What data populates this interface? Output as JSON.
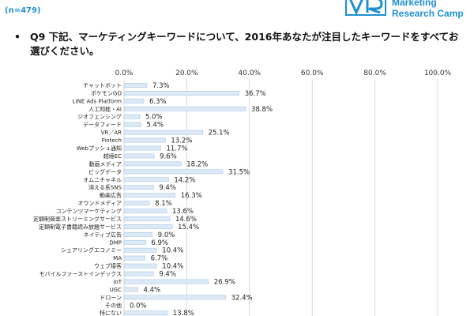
{
  "header": {
    "n_label": "(n=479)",
    "logo_line1": "Marketing",
    "logo_line2": "Research Camp"
  },
  "question": {
    "bullet": "•",
    "text": "Q9 下記、マーケティングキーワードについて、2016年あなたが注目したキーワードをすべてお選びください。"
  },
  "colors": {
    "accent": "#1f8fd4",
    "bar_fill": "#dce9f6",
    "bar_stroke": "#a9c6e6",
    "grid": "#cfcfcf"
  },
  "chart_data": {
    "type": "bar",
    "orientation": "horizontal",
    "xlim": [
      0,
      100
    ],
    "ticks": [
      "0.0%",
      "20.0%",
      "40.0%",
      "60.0%",
      "80.0%",
      "100.0%"
    ],
    "tick_values": [
      0,
      20,
      40,
      60,
      80,
      100
    ],
    "grid": true,
    "categories": [
      "チャットボット",
      "ポケモンGO",
      "LINE Ads Platform",
      "人工知能・AI",
      "ジオフェンシング",
      "データフィード",
      "VR／AR",
      "Fintech",
      "Webプッシュ通知",
      "越境EC",
      "動画メディア",
      "ビッグデータ",
      "オムニチャネル",
      "消える系SNS",
      "動画広告",
      "オウンドメディア",
      "コンテンツマーケティング",
      "定額制音楽ストリーミングサービス",
      "定額制電子書籍読み放題サービス",
      "ネイティブ広告",
      "DMP",
      "シェアリングエコノミー",
      "MA",
      "ウェブ接客",
      "モバイルファーストインデックス",
      "IoT",
      "UGC",
      "ドローン",
      "その他",
      "特にない"
    ],
    "values": [
      7.3,
      36.7,
      6.3,
      38.8,
      5.0,
      5.4,
      25.1,
      13.2,
      11.7,
      9.6,
      18.2,
      31.5,
      14.2,
      9.4,
      16.3,
      8.1,
      13.6,
      14.6,
      15.4,
      9.0,
      6.9,
      10.4,
      6.7,
      10.4,
      9.4,
      26.9,
      4.4,
      32.4,
      0.0,
      13.8
    ],
    "value_labels": [
      "7.3%",
      "36.7%",
      "6.3%",
      "38.8%",
      "5.0%",
      "5.4%",
      "25.1%",
      "13.2%",
      "11.7%",
      "9.6%",
      "18.2%",
      "31.5%",
      "14.2%",
      "9.4%",
      "16.3%",
      "8.1%",
      "13.6%",
      "14.6%",
      "15.4%",
      "9.0%",
      "6.9%",
      "10.4%",
      "6.7%",
      "10.4%",
      "9.4%",
      "26.9%",
      "4.4%",
      "32.4%",
      "0.0%",
      "13.8%"
    ]
  }
}
